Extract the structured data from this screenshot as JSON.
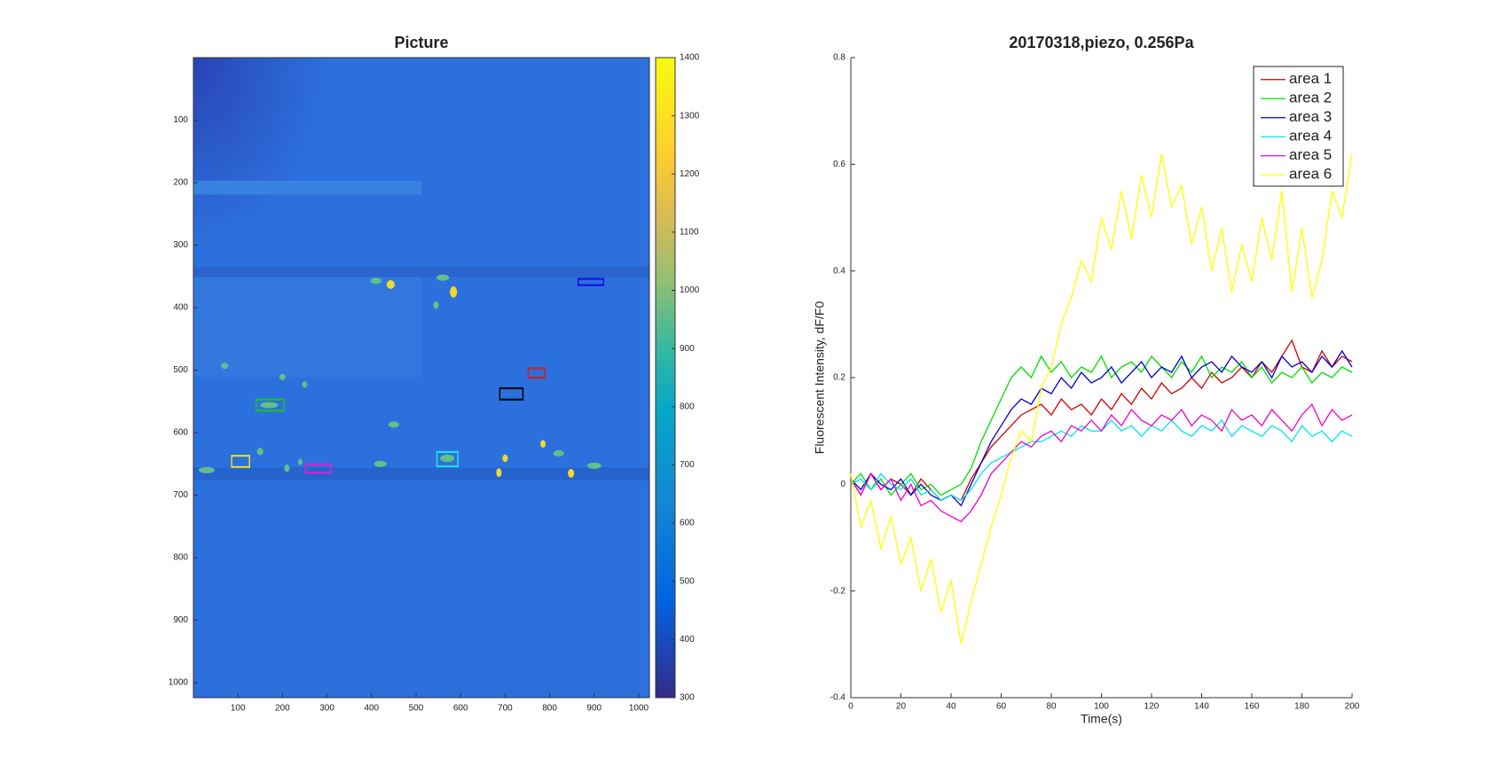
{
  "chart_data": [
    {
      "type": "image",
      "title": "Picture",
      "xlim": [
        0,
        1024
      ],
      "ylim": [
        0,
        1024
      ],
      "y_reversed": true,
      "xticks": [
        100,
        200,
        300,
        400,
        500,
        600,
        700,
        800,
        900,
        1000
      ],
      "yticks": [
        100,
        200,
        300,
        400,
        500,
        600,
        700,
        800,
        900,
        1000
      ],
      "colorbar": {
        "clim": [
          300,
          1400
        ],
        "ticks": [
          300,
          400,
          500,
          600,
          700,
          800,
          900,
          1000,
          1100,
          1200,
          1300,
          1400
        ]
      }
    },
    {
      "type": "line",
      "title": "20170318,piezo, 0.256Pa",
      "xlabel": "Time(s)",
      "ylabel": "Fluorescent Intensity, dF/F0",
      "xlim": [
        0,
        200
      ],
      "ylim": [
        -0.4,
        0.8
      ],
      "xticks": [
        0,
        20,
        40,
        60,
        80,
        100,
        120,
        140,
        160,
        180,
        200
      ],
      "yticks": [
        -0.4,
        -0.2,
        0,
        0.2,
        0.4,
        0.6,
        0.8
      ],
      "legend": "northeast",
      "x": [
        0,
        4,
        8,
        12,
        16,
        20,
        24,
        28,
        32,
        36,
        40,
        44,
        48,
        52,
        56,
        60,
        64,
        68,
        72,
        76,
        80,
        84,
        88,
        92,
        96,
        100,
        104,
        108,
        112,
        116,
        120,
        124,
        128,
        132,
        136,
        140,
        144,
        148,
        152,
        156,
        160,
        164,
        168,
        172,
        176,
        180,
        184,
        188,
        192,
        196,
        200
      ],
      "series": [
        {
          "name": "area 1",
          "color": "#d00000",
          "values": [
            0.01,
            -0.02,
            0.02,
            -0.01,
            0.01,
            0,
            -0.02,
            0.01,
            -0.01,
            -0.03,
            -0.02,
            -0.03,
            0.01,
            0.04,
            0.07,
            0.09,
            0.11,
            0.13,
            0.14,
            0.15,
            0.13,
            0.16,
            0.14,
            0.15,
            0.13,
            0.16,
            0.14,
            0.17,
            0.15,
            0.18,
            0.16,
            0.19,
            0.17,
            0.18,
            0.2,
            0.18,
            0.21,
            0.19,
            0.2,
            0.22,
            0.2,
            0.23,
            0.21,
            0.24,
            0.27,
            0.22,
            0.21,
            0.25,
            0.22,
            0.24,
            0.23
          ]
        },
        {
          "name": "area 2",
          "color": "#00dd00",
          "values": [
            0,
            0.02,
            -0.01,
            0.01,
            -0.02,
            0,
            0.02,
            -0.01,
            0,
            -0.02,
            -0.01,
            0,
            0.03,
            0.08,
            0.12,
            0.16,
            0.2,
            0.22,
            0.2,
            0.24,
            0.21,
            0.23,
            0.2,
            0.22,
            0.21,
            0.24,
            0.2,
            0.22,
            0.23,
            0.21,
            0.24,
            0.22,
            0.2,
            0.23,
            0.21,
            0.24,
            0.2,
            0.22,
            0.21,
            0.23,
            0.2,
            0.22,
            0.19,
            0.21,
            0.2,
            0.22,
            0.19,
            0.21,
            0.2,
            0.22,
            0.21
          ]
        },
        {
          "name": "area 3",
          "color": "#0000cc",
          "values": [
            0.01,
            -0.01,
            0.02,
            0,
            -0.01,
            0.01,
            -0.02,
            0,
            -0.02,
            -0.03,
            -0.02,
            -0.04,
            0,
            0.04,
            0.08,
            0.11,
            0.14,
            0.16,
            0.15,
            0.18,
            0.17,
            0.2,
            0.18,
            0.21,
            0.19,
            0.2,
            0.22,
            0.19,
            0.21,
            0.23,
            0.2,
            0.22,
            0.21,
            0.24,
            0.2,
            0.22,
            0.23,
            0.21,
            0.24,
            0.22,
            0.21,
            0.23,
            0.2,
            0.24,
            0.22,
            0.23,
            0.21,
            0.24,
            0.22,
            0.25,
            0.22
          ]
        },
        {
          "name": "area 4",
          "color": "#00e5ee",
          "values": [
            0,
            0.01,
            -0.01,
            0.02,
            0,
            -0.01,
            0.01,
            -0.02,
            -0.01,
            -0.03,
            -0.02,
            -0.03,
            -0.01,
            0.02,
            0.04,
            0.05,
            0.06,
            0.07,
            0.08,
            0.08,
            0.09,
            0.1,
            0.09,
            0.11,
            0.1,
            0.1,
            0.12,
            0.1,
            0.11,
            0.09,
            0.11,
            0.1,
            0.12,
            0.1,
            0.09,
            0.11,
            0.1,
            0.12,
            0.09,
            0.11,
            0.1,
            0.09,
            0.11,
            0.1,
            0.08,
            0.11,
            0.09,
            0.1,
            0.08,
            0.1,
            0.09
          ]
        },
        {
          "name": "area 5",
          "color": "#ee00cc",
          "values": [
            0.01,
            -0.02,
            0.02,
            -0.01,
            0.01,
            -0.03,
            0,
            -0.04,
            -0.03,
            -0.05,
            -0.06,
            -0.07,
            -0.05,
            -0.02,
            0.02,
            0.04,
            0.06,
            0.08,
            0.07,
            0.09,
            0.1,
            0.08,
            0.11,
            0.1,
            0.12,
            0.1,
            0.13,
            0.11,
            0.14,
            0.12,
            0.11,
            0.13,
            0.12,
            0.14,
            0.11,
            0.13,
            0.12,
            0.1,
            0.14,
            0.12,
            0.13,
            0.11,
            0.14,
            0.12,
            0.1,
            0.13,
            0.15,
            0.11,
            0.14,
            0.12,
            0.13
          ]
        },
        {
          "name": "area 6",
          "color": "#ffff00",
          "values": [
            0.02,
            -0.08,
            -0.03,
            -0.12,
            -0.06,
            -0.15,
            -0.1,
            -0.2,
            -0.14,
            -0.24,
            -0.18,
            -0.3,
            -0.22,
            -0.15,
            -0.08,
            -0.02,
            0.05,
            0.1,
            0.08,
            0.18,
            0.22,
            0.3,
            0.35,
            0.42,
            0.38,
            0.5,
            0.44,
            0.55,
            0.46,
            0.58,
            0.5,
            0.62,
            0.52,
            0.56,
            0.45,
            0.52,
            0.4,
            0.48,
            0.36,
            0.45,
            0.38,
            0.5,
            0.42,
            0.55,
            0.36,
            0.48,
            0.35,
            0.42,
            0.55,
            0.5,
            0.62
          ]
        }
      ]
    }
  ]
}
